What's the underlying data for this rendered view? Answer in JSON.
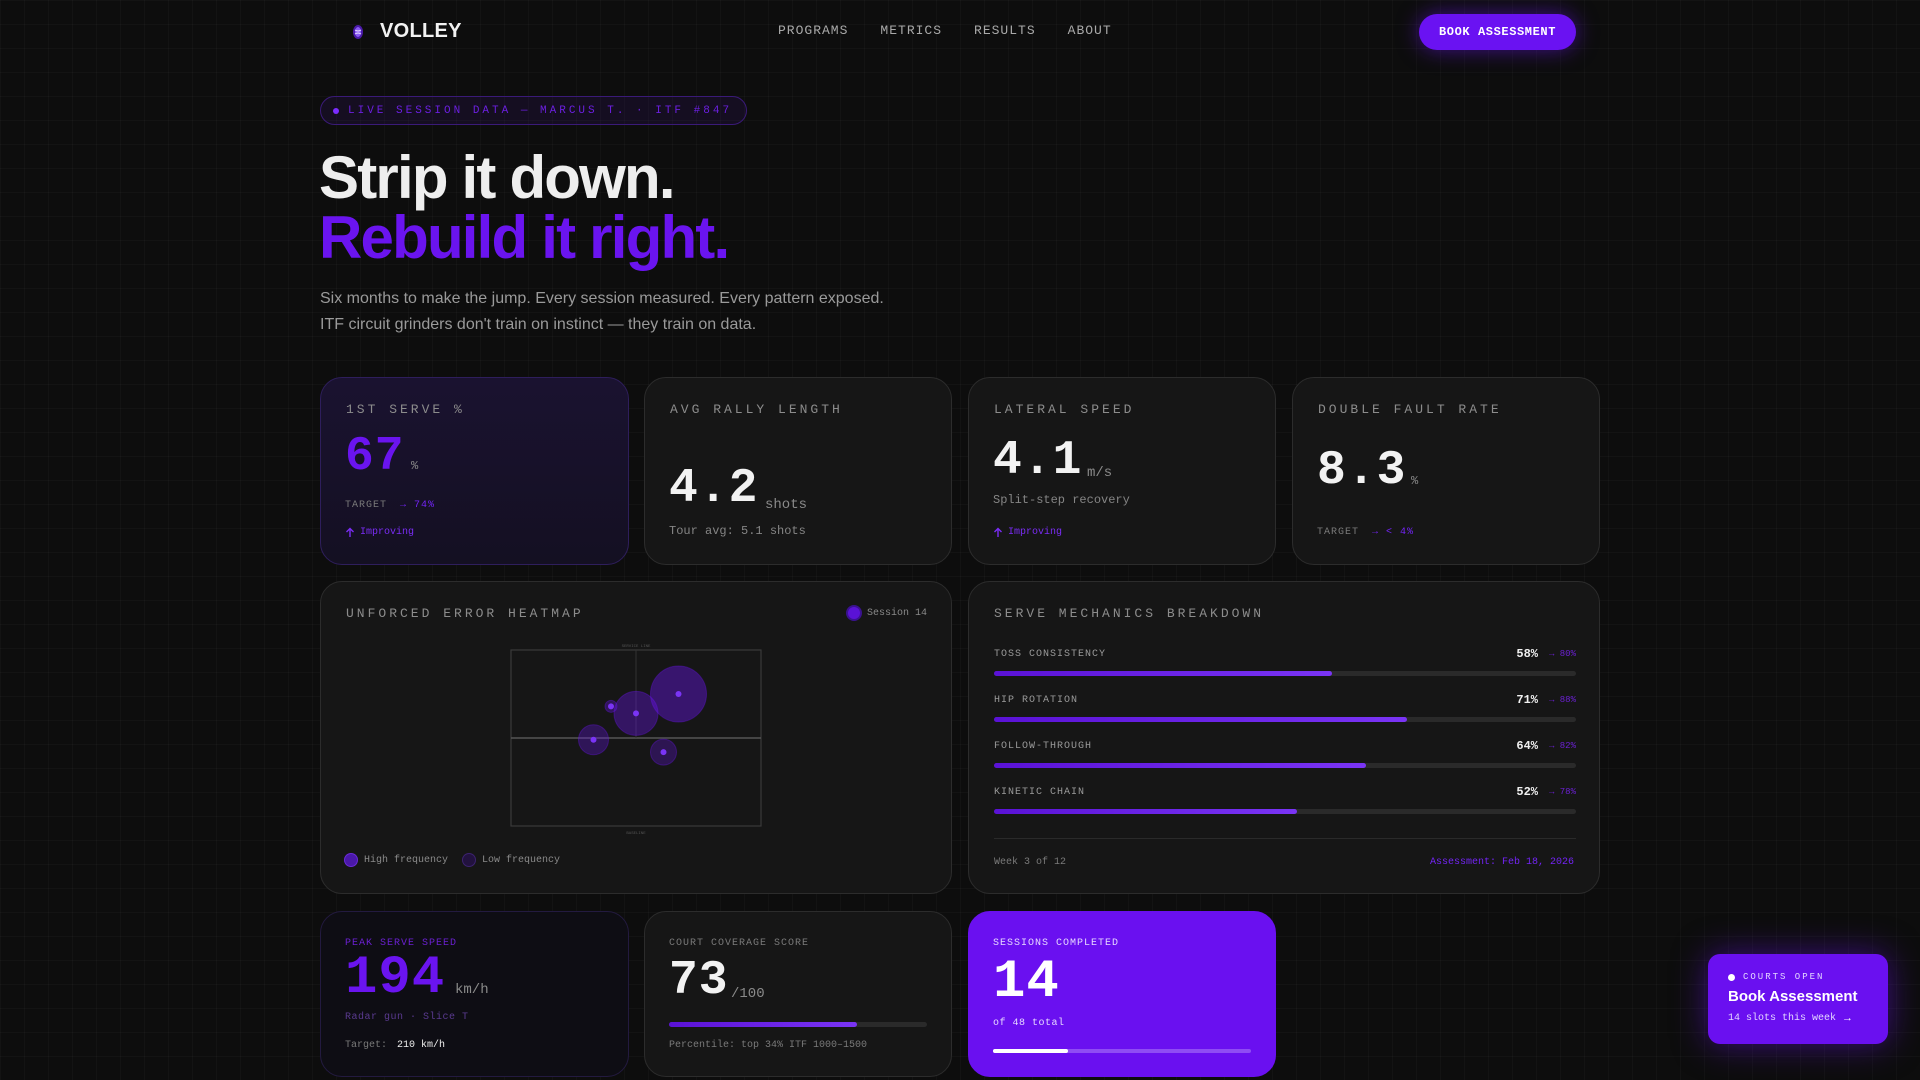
{
  "brand": {
    "name": "VOLLEY"
  },
  "nav": {
    "links": [
      "PROGRAMS",
      "METRICS",
      "RESULTS",
      "ABOUT"
    ],
    "cta_label": "BOOK ASSESSMENT"
  },
  "hero": {
    "badge": "LIVE SESSION DATA — MARCUS T. · ITF #847",
    "title_line1": "Strip it down.",
    "title_line2": "Rebuild it right.",
    "subtitle_line1": "Six months to make the jump. Every session measured. Every pattern exposed.",
    "subtitle_line2": "ITF circuit grinders don't train on instinct — they train on data."
  },
  "stats": {
    "first_serve": {
      "label": "1ST SERVE %",
      "value": "67",
      "unit": "%",
      "target_label": "TARGET",
      "target_value": "→ 74%",
      "trend": "Improving"
    },
    "rally": {
      "label": "AVG RALLY LENGTH",
      "value": "4.2",
      "unit": "shots",
      "note": "Tour avg: 5.1 shots"
    },
    "lateral": {
      "label": "LATERAL SPEED",
      "value": "4.1",
      "unit": "m/s",
      "note": "Split-step recovery",
      "trend": "Improving"
    },
    "double_fault": {
      "label": "DOUBLE FAULT RATE",
      "value": "8.3",
      "unit": "%",
      "target_label": "TARGET",
      "target_value": "→ < 4%"
    }
  },
  "heatmap": {
    "title": "UNFORCED ERROR HEATMAP",
    "session": "Session 14",
    "top_label": "SERVICE LINE",
    "bottom_label": "BASELINE",
    "legend_high": "High frequency",
    "legend_low": "Low frequency",
    "colors": {
      "high": "#6a14ef",
      "low": "#2a1650"
    },
    "points": [
      {
        "x": 0.67,
        "y": 0.25,
        "r": 28,
        "intensity": 0.9
      },
      {
        "x": 0.5,
        "y": 0.36,
        "r": 22,
        "intensity": 0.7
      },
      {
        "x": 0.33,
        "y": 0.51,
        "r": 15,
        "intensity": 0.5
      },
      {
        "x": 0.61,
        "y": 0.58,
        "r": 13,
        "intensity": 0.4
      },
      {
        "x": 0.4,
        "y": 0.32,
        "r": 6,
        "intensity": 0.6
      }
    ]
  },
  "mechanics": {
    "title": "SERVE MECHANICS BREAKDOWN",
    "items": [
      {
        "name": "TOSS CONSISTENCY",
        "value": "58%",
        "target": "→ 80%",
        "fraction": 0.58
      },
      {
        "name": "HIP ROTATION",
        "value": "71%",
        "target": "→ 88%",
        "fraction": 0.71
      },
      {
        "name": "FOLLOW-THROUGH",
        "value": "64%",
        "target": "→ 82%",
        "fraction": 0.64
      },
      {
        "name": "KINETIC CHAIN",
        "value": "52%",
        "target": "→ 78%",
        "fraction": 0.52
      }
    ],
    "week": "Week 3 of 12",
    "assessment": "Assessment: Feb 18, 2026"
  },
  "bottom": {
    "peak_serve": {
      "label": "PEAK SERVE SPEED",
      "value": "194",
      "unit": "km/h",
      "note": "Radar gun · Slice T",
      "target_label": "Target:",
      "target_value": "210 km/h"
    },
    "coverage": {
      "label": "COURT COVERAGE SCORE",
      "value": "73",
      "unit": "/100",
      "fraction": 0.73,
      "note": "Percentile: top 34% ITF 1000–1500"
    },
    "sessions": {
      "label": "SESSIONS COMPLETED",
      "value": "14",
      "note": "of 48 total",
      "fraction": 0.29
    }
  },
  "floating": {
    "eyebrow": "COURTS OPEN",
    "title": "Book Assessment",
    "note": "14 slots this week",
    "arrow": "→"
  }
}
